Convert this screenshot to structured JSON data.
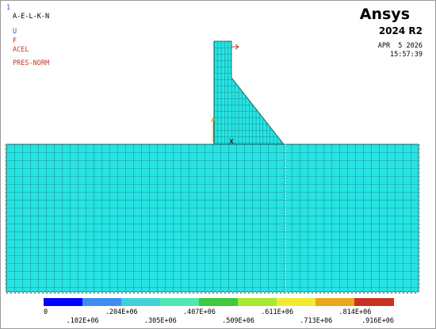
{
  "window": {
    "number": "1"
  },
  "plot_labels": [
    "A-E-L-K-N",
    "U",
    "F",
    "ACEL",
    "PRES-NORM"
  ],
  "brand": {
    "name": "Ansys",
    "version": "2024 R2"
  },
  "timestamp": {
    "date": "APR  5 2026",
    "time": "15:57:39"
  },
  "legend": {
    "labels": [
      "0",
      ".102E+06",
      ".204E+06",
      ".305E+06",
      ".407E+06",
      ".509E+06",
      ".611E+06",
      ".713E+06",
      ".814E+06",
      ".916E+06"
    ]
  }
}
